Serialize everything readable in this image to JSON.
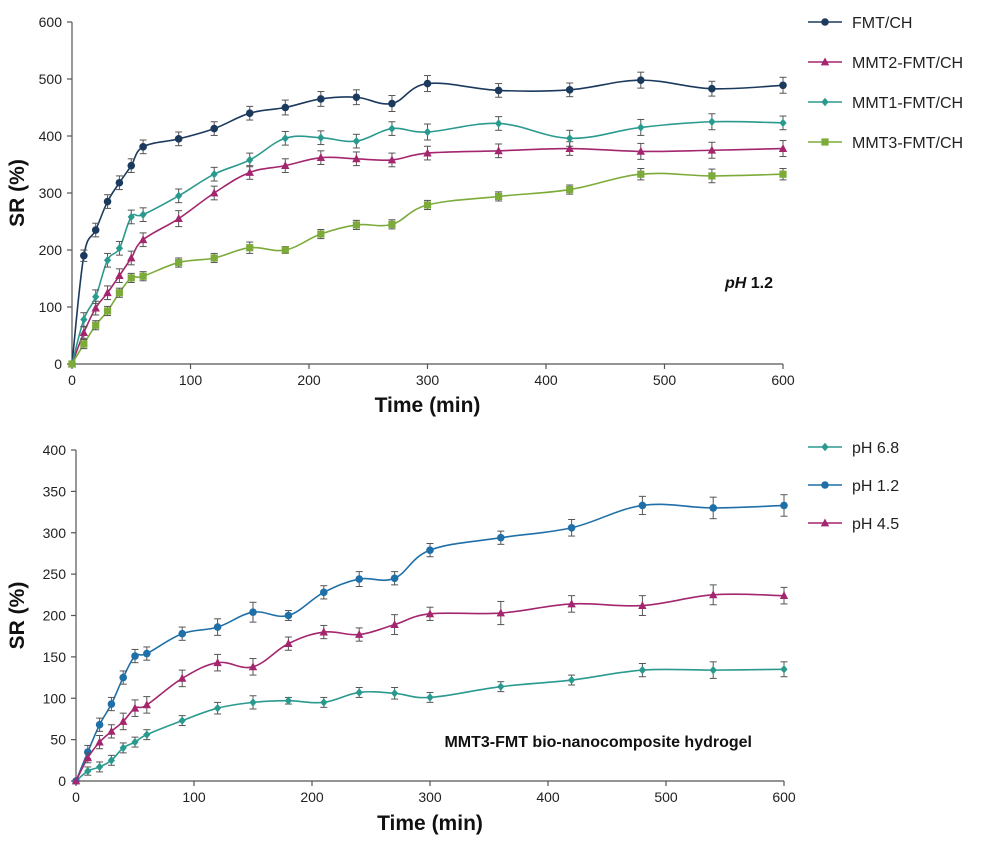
{
  "chart_data": [
    {
      "type": "line",
      "xlabel": "Time (min)",
      "ylabel": "SR (%)",
      "xlim": [
        0,
        600
      ],
      "ylim": [
        0,
        600
      ],
      "xticks": [
        0,
        100,
        200,
        300,
        400,
        500,
        600
      ],
      "yticks": [
        0,
        100,
        200,
        300,
        400,
        500,
        600
      ],
      "annotation": {
        "italic": "pH",
        "rest": " 1.2"
      },
      "legend_position": "top-right",
      "x": [
        0,
        10,
        20,
        30,
        40,
        50,
        60,
        90,
        120,
        150,
        180,
        210,
        240,
        270,
        300,
        360,
        420,
        480,
        540,
        600
      ],
      "series": [
        {
          "name": "FMT/CH",
          "color": "#1c3a5e",
          "marker": "circle",
          "values": [
            0,
            190,
            235,
            285,
            318,
            348,
            381,
            395,
            413,
            440,
            450,
            465,
            468,
            457,
            492,
            480,
            481,
            498,
            483,
            489
          ],
          "err": [
            0,
            10,
            12,
            12,
            12,
            12,
            12,
            12,
            12,
            12,
            13,
            13,
            13,
            14,
            14,
            12,
            12,
            14,
            13,
            14
          ]
        },
        {
          "name": "MMT2-FMT/CH",
          "color": "#a3266e",
          "marker": "triangle",
          "values": [
            0,
            55,
            98,
            125,
            155,
            186,
            218,
            255,
            300,
            336,
            348,
            362,
            360,
            358,
            370,
            374,
            378,
            373,
            375,
            378
          ],
          "err": [
            0,
            10,
            12,
            12,
            12,
            12,
            12,
            14,
            12,
            12,
            12,
            12,
            12,
            12,
            12,
            12,
            12,
            14,
            14,
            14
          ]
        },
        {
          "name": "MMT1-FMT/CH",
          "color": "#2a9a8e",
          "marker": "diamond",
          "values": [
            0,
            78,
            118,
            182,
            203,
            258,
            262,
            295,
            333,
            358,
            396,
            397,
            391,
            413,
            407,
            422,
            396,
            415,
            425,
            423
          ],
          "err": [
            0,
            12,
            12,
            12,
            12,
            12,
            12,
            12,
            12,
            12,
            12,
            12,
            12,
            12,
            14,
            12,
            14,
            14,
            14,
            12
          ]
        },
        {
          "name": "MMT3-FMT/CH",
          "color": "#7cab3a",
          "marker": "square",
          "values": [
            0,
            35,
            68,
            93,
            125,
            151,
            154,
            178,
            186,
            204,
            200,
            228,
            244,
            245,
            279,
            294,
            306,
            333,
            330,
            333
          ],
          "err": [
            0,
            8,
            8,
            8,
            8,
            8,
            8,
            8,
            8,
            10,
            6,
            8,
            8,
            8,
            8,
            8,
            8,
            10,
            12,
            10
          ]
        }
      ]
    },
    {
      "type": "line",
      "xlabel": "Time (min)",
      "ylabel": "SR (%)",
      "xlim": [
        0,
        600
      ],
      "ylim": [
        0,
        400
      ],
      "xticks": [
        0,
        100,
        200,
        300,
        400,
        500,
        600
      ],
      "yticks": [
        0,
        50,
        100,
        150,
        200,
        250,
        300,
        350,
        400
      ],
      "annotation": {
        "italic": "",
        "rest": "MMT3-FMT bio-nanocomposite hydrogel"
      },
      "legend_position": "top-right",
      "x": [
        0,
        10,
        20,
        30,
        40,
        50,
        60,
        90,
        120,
        150,
        180,
        210,
        240,
        270,
        300,
        360,
        420,
        480,
        540,
        600
      ],
      "series": [
        {
          "name": "pH 6.8",
          "color": "#2a9a8e",
          "marker": "diamond",
          "values": [
            0,
            12,
            17,
            25,
            40,
            47,
            56,
            73,
            88,
            95,
            97,
            95,
            107,
            106,
            101,
            114,
            122,
            134,
            134,
            135
          ],
          "err": [
            0,
            5,
            6,
            6,
            6,
            6,
            6,
            6,
            7,
            8,
            4,
            6,
            6,
            7,
            6,
            6,
            6,
            8,
            10,
            9
          ]
        },
        {
          "name": "pH 1.2",
          "color": "#1f6fa8",
          "marker": "circle",
          "values": [
            0,
            35,
            68,
            93,
            125,
            151,
            154,
            178,
            186,
            204,
            200,
            228,
            244,
            245,
            279,
            294,
            306,
            333,
            330,
            333
          ],
          "err": [
            0,
            8,
            8,
            8,
            8,
            8,
            8,
            8,
            10,
            12,
            6,
            8,
            9,
            8,
            8,
            8,
            10,
            11,
            13,
            13
          ]
        },
        {
          "name": "pH 4.5",
          "color": "#a3266e",
          "marker": "triangle",
          "values": [
            0,
            28,
            47,
            60,
            72,
            88,
            92,
            124,
            143,
            138,
            166,
            180,
            177,
            189,
            202,
            203,
            214,
            212,
            225,
            224
          ],
          "err": [
            0,
            6,
            8,
            8,
            10,
            10,
            10,
            10,
            10,
            10,
            8,
            8,
            8,
            12,
            8,
            14,
            10,
            12,
            12,
            10
          ]
        }
      ]
    }
  ]
}
